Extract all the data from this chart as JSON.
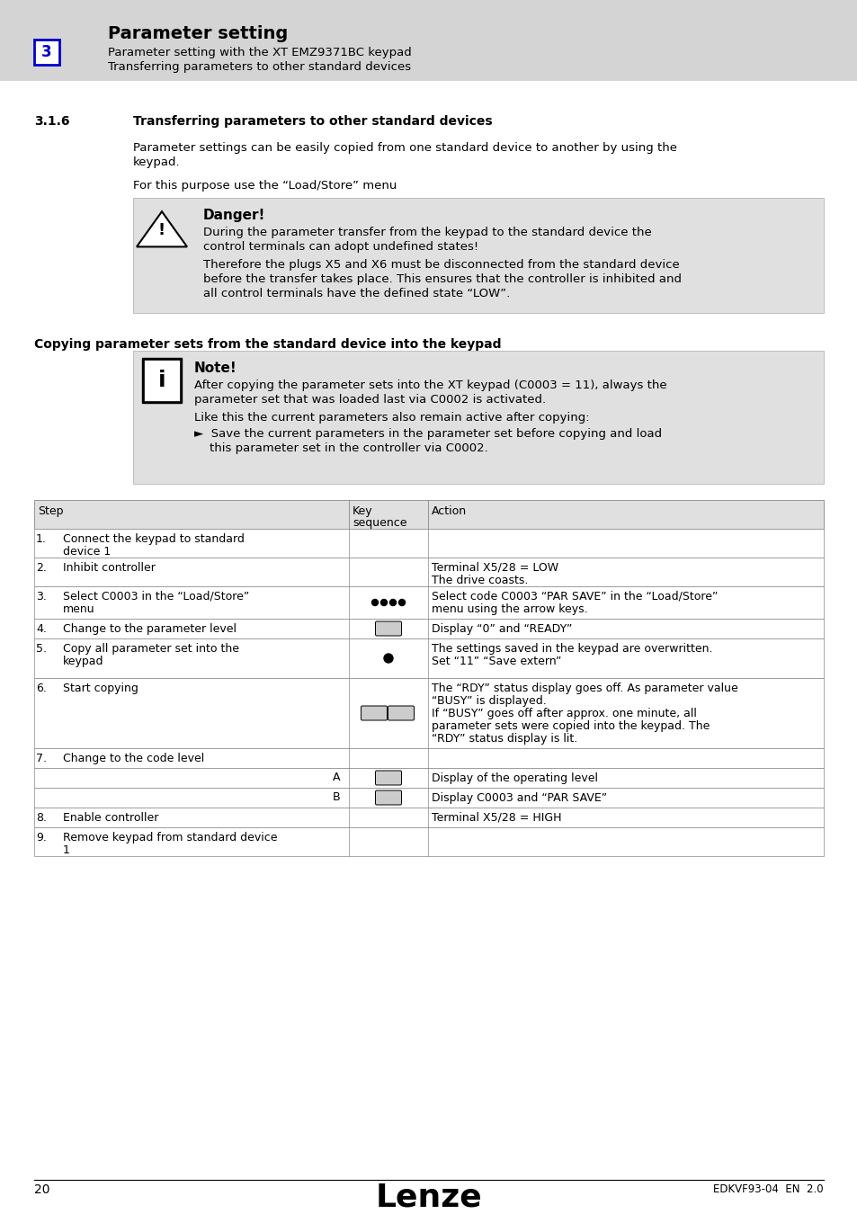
{
  "bg_color": "#ffffff",
  "header_bg": "#d4d4d4",
  "header_number_box_color": "#0000cc",
  "header_title": "Parameter setting",
  "header_sub1": "Parameter setting with the XT EMZ9371BC keypad",
  "header_sub2": "Transferring parameters to other standard devices",
  "section_number": "3.1.6",
  "section_title": "Transferring parameters to other standard devices",
  "para1_line1": "Parameter settings can be easily copied from one standard device to another by using the",
  "para1_line2": "keypad.",
  "para2": "For this purpose use the “Load/Store” menu",
  "danger_title": "Danger!",
  "danger_text1_line1": "During the parameter transfer from the keypad to the standard device the",
  "danger_text1_line2": "control terminals can adopt undefined states!",
  "danger_text2_line1": "Therefore the plugs X5 and X6 must be disconnected from the standard device",
  "danger_text2_line2": "before the transfer takes place. This ensures that the controller is inhibited and",
  "danger_text2_line3": "all control terminals have the defined state “LOW”.",
  "copy_heading": "Copying parameter sets from the standard device into the keypad",
  "note_title": "Note!",
  "note_text1_line1": "After copying the parameter sets into the XT keypad (C0003 = 11), always the",
  "note_text1_line2": "parameter set that was loaded last via C0002 is activated.",
  "note_text2": "Like this the current parameters also remain active after copying:",
  "note_bullet_line1": "►  Save the current parameters in the parameter set before copying and load",
  "note_bullet_line2": "    this parameter set in the controller via C0002.",
  "footer_page": "20",
  "footer_logo": "Lenze",
  "footer_code": "EDKVF93-04  EN  2.0",
  "note_box_bg": "#e0e0e0",
  "danger_box_bg": "#e0e0e0",
  "table_header_bg": "#e0e0e0",
  "table_line_color": "#888888"
}
